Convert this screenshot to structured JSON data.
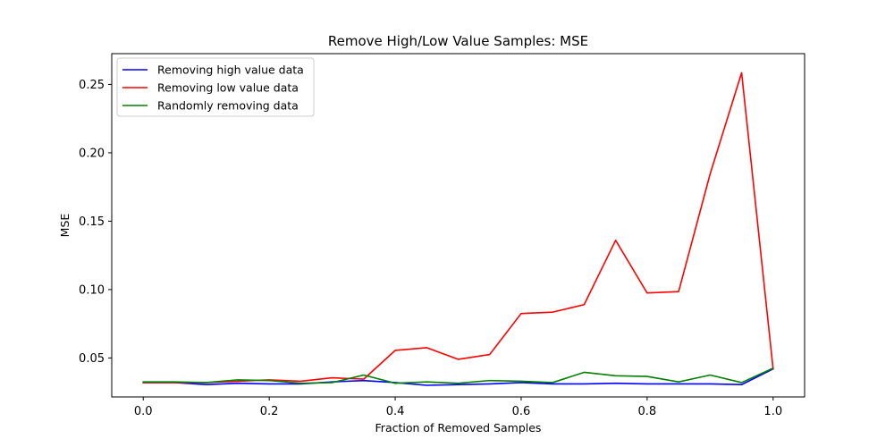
{
  "chart_data": {
    "type": "line",
    "title": "Remove High/Low Value Samples: MSE",
    "xlabel": "Fraction of Removed Samples",
    "ylabel": "MSE",
    "xlim": [
      -0.05,
      1.05
    ],
    "ylim": [
      0.0215,
      0.2725
    ],
    "xticks": [
      0.0,
      0.2,
      0.4,
      0.6,
      0.8,
      1.0
    ],
    "xtick_labels": [
      "0.0",
      "0.2",
      "0.4",
      "0.6",
      "0.8",
      "1.0"
    ],
    "yticks": [
      0.05,
      0.1,
      0.15,
      0.2,
      0.25
    ],
    "ytick_labels": [
      "0.05",
      "0.10",
      "0.15",
      "0.20",
      "0.25"
    ],
    "grid": false,
    "legend_position": "upper-left",
    "x": [
      0.0,
      0.05,
      0.1,
      0.15,
      0.2,
      0.25,
      0.3,
      0.35,
      0.4,
      0.45,
      0.5,
      0.55,
      0.6,
      0.65,
      0.7,
      0.75,
      0.8,
      0.85,
      0.9,
      0.95,
      1.0
    ],
    "series": [
      {
        "name": "Removing high value data",
        "color": "#0000ff",
        "values": [
          0.032,
          0.032,
          0.0305,
          0.0315,
          0.031,
          0.031,
          0.0325,
          0.0335,
          0.032,
          0.03,
          0.0305,
          0.031,
          0.032,
          0.031,
          0.031,
          0.0315,
          0.031,
          0.031,
          0.031,
          0.0305,
          0.042
        ]
      },
      {
        "name": "Removing low value data",
        "color": "#ff0000",
        "values": [
          0.032,
          0.032,
          0.032,
          0.033,
          0.034,
          0.033,
          0.0355,
          0.0345,
          0.0555,
          0.0575,
          0.049,
          0.0525,
          0.0825,
          0.0835,
          0.089,
          0.136,
          0.0975,
          0.0985,
          0.1845,
          0.2585,
          0.042
        ]
      },
      {
        "name": "Randomly removing data",
        "color": "#008000",
        "values": [
          0.0325,
          0.0325,
          0.032,
          0.034,
          0.0335,
          0.0315,
          0.032,
          0.0375,
          0.0315,
          0.0325,
          0.0315,
          0.0335,
          0.033,
          0.032,
          0.0395,
          0.037,
          0.0365,
          0.0325,
          0.0375,
          0.032,
          0.0425
        ]
      }
    ]
  }
}
